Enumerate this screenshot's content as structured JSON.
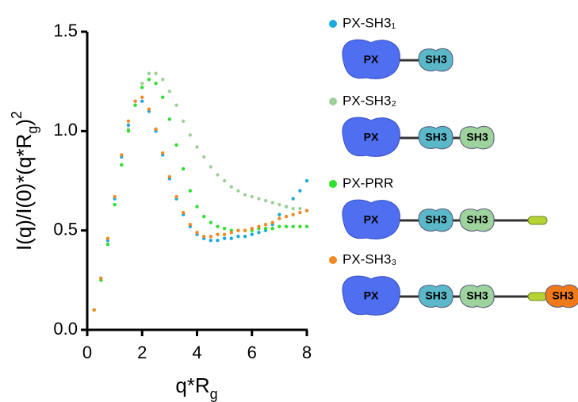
{
  "chart_data": {
    "type": "scatter",
    "xlabel": [
      "q*R",
      "g"
    ],
    "ylabel": [
      "I(q)/I(0)*(q*R",
      "g",
      ")",
      "2"
    ],
    "xlim": [
      0,
      8
    ],
    "ylim": [
      0,
      1.5
    ],
    "xticks": [
      0,
      2,
      4,
      6,
      8
    ],
    "yticks": [
      {
        "value": 0,
        "label": "0.0"
      },
      0.5,
      {
        "value": 1,
        "label": "1.0"
      },
      1.5
    ],
    "x": [
      0.25,
      0.5,
      0.75,
      1,
      1.25,
      1.5,
      1.75,
      2,
      2.25,
      2.5,
      2.75,
      3,
      3.25,
      3.5,
      3.75,
      4,
      4.25,
      4.5,
      4.75,
      5,
      5.25,
      5.5,
      5.75,
      6,
      6.25,
      6.5,
      6.75,
      7,
      7.25,
      7.5,
      7.75,
      8
    ],
    "series": [
      {
        "name": "PX-SH3₁",
        "color": "#1ba9e0",
        "values": [
          0.1,
          0.26,
          0.45,
          0.66,
          0.87,
          1.03,
          1.13,
          1.15,
          1.1,
          1.0,
          0.88,
          0.76,
          0.66,
          0.58,
          0.52,
          0.48,
          0.46,
          0.45,
          0.45,
          0.46,
          0.46,
          0.47,
          0.47,
          0.48,
          0.49,
          0.5,
          0.53,
          0.58,
          0.62,
          0.66,
          0.7,
          0.75
        ]
      },
      {
        "name": "PX-SH3₂",
        "color": "#9fd09a",
        "values": [
          0.1,
          0.25,
          0.43,
          0.63,
          0.83,
          1.01,
          1.15,
          1.24,
          1.29,
          1.29,
          1.26,
          1.2,
          1.13,
          1.05,
          0.98,
          0.92,
          0.87,
          0.82,
          0.78,
          0.75,
          0.72,
          0.7,
          0.68,
          0.67,
          0.66,
          0.65,
          0.64,
          0.63,
          0.62,
          0.61,
          0.61,
          0.6
        ]
      },
      {
        "name": "PX-PRR",
        "color": "#2fe02f",
        "values": [
          0.1,
          0.25,
          0.43,
          0.63,
          0.83,
          1.0,
          1.13,
          1.22,
          1.26,
          1.24,
          1.17,
          1.06,
          0.93,
          0.81,
          0.7,
          0.62,
          0.57,
          0.54,
          0.52,
          0.51,
          0.5,
          0.5,
          0.5,
          0.5,
          0.51,
          0.51,
          0.51,
          0.52,
          0.52,
          0.52,
          0.52,
          0.52
        ]
      },
      {
        "name": "PX-SH3₃",
        "color": "#f08a24",
        "values": [
          0.1,
          0.26,
          0.46,
          0.67,
          0.88,
          1.05,
          1.15,
          1.17,
          1.11,
          1.01,
          0.89,
          0.77,
          0.67,
          0.59,
          0.53,
          0.49,
          0.47,
          0.47,
          0.48,
          0.48,
          0.49,
          0.5,
          0.5,
          0.51,
          0.52,
          0.53,
          0.54,
          0.56,
          0.57,
          0.58,
          0.59,
          0.6
        ]
      }
    ],
    "diagrams": [
      [
        "PX",
        "SH3"
      ],
      [
        "PX",
        "SH3",
        "SH3"
      ],
      [
        "PX",
        "SH3",
        "SH3",
        null
      ],
      [
        "PX",
        "SH3",
        "SH3",
        null,
        "SH3"
      ]
    ]
  }
}
